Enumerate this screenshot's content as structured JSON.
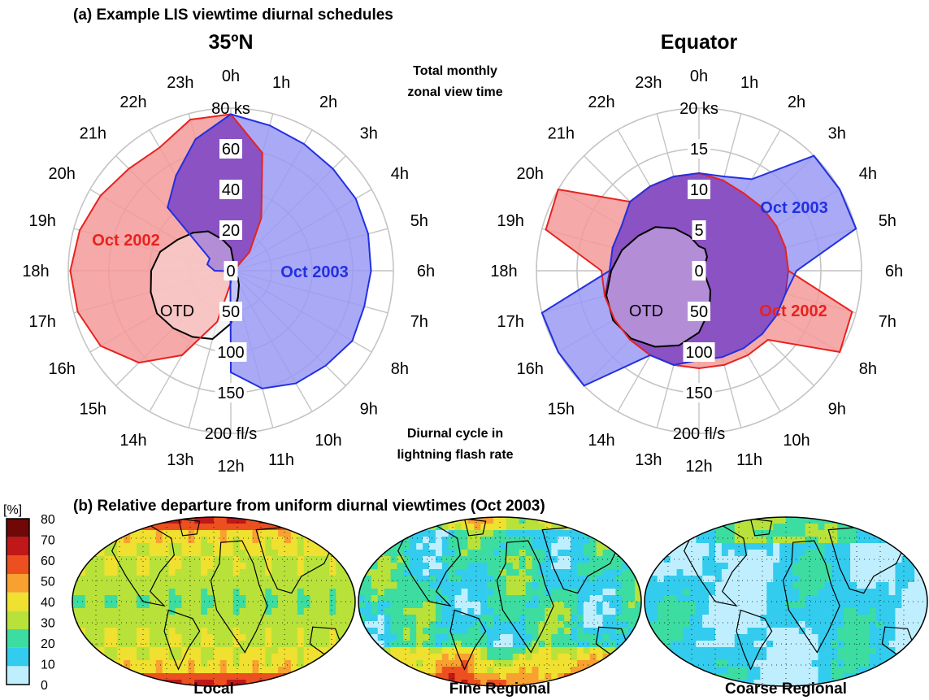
{
  "panel_a_title": "(a) Example LIS viewtime diurnal schedules",
  "panel_b_title": "(b) Relative departure from uniform diurnal viewtimes (Oct 2003)",
  "colors": {
    "oct2002_fill": "#f49a9a",
    "oct2002_line": "#e8221e",
    "oct2002_label": "#e8221e",
    "oct2003_fill": "#9a9af4",
    "oct2003_line": "#2230e0",
    "oct2003_label": "#2230e0",
    "overlap_fill": "#8a52c2",
    "overlap_line": "#8a1f7a",
    "otd_fill": "#e2e2e2",
    "grid": "#c4c4c4"
  },
  "chart_data": [
    {
      "type": "polar-area",
      "title": "35ºN",
      "note_top": [
        "Total monthly",
        "zonal view time"
      ],
      "hour_labels": [
        "0h",
        "1h",
        "2h",
        "3h",
        "4h",
        "5h",
        "6h",
        "7h",
        "8h",
        "9h",
        "10h",
        "11h",
        "12h",
        "13h",
        "14h",
        "15h",
        "16h",
        "17h",
        "18h",
        "19h",
        "20h",
        "21h",
        "22h",
        "23h"
      ],
      "rmax": 80,
      "view_ticks": [
        0,
        20,
        40,
        60
      ],
      "view_tick_labels": [
        "0",
        "20",
        "40",
        "60",
        "80 ks"
      ],
      "flash_ticks": [
        50,
        100,
        150
      ],
      "flash_tick_labels": [
        "50",
        "100",
        "150",
        "200 fl/s"
      ],
      "flash_max": 200,
      "series": [
        {
          "name": "Oct 2002",
          "values": [
            77,
            60,
            30,
            13,
            3,
            2,
            1,
            1,
            1,
            1,
            1,
            2,
            6,
            26,
            48,
            64,
            74,
            78,
            79,
            77,
            74,
            71,
            70,
            77
          ]
        },
        {
          "name": "Oct 2003",
          "values": [
            77,
            74,
            72,
            71,
            71,
            70,
            69,
            68,
            69,
            66,
            64,
            60,
            50,
            1,
            1,
            1,
            1,
            1,
            8,
            12,
            12,
            44,
            54,
            67
          ]
        },
        {
          "name": "OTD",
          "values": [
            28,
            12,
            6,
            4,
            3,
            3,
            2,
            3,
            6,
            12,
            20,
            34,
            65,
            87,
            94,
            100,
            105,
            102,
            98,
            90,
            76,
            66,
            56,
            40
          ]
        }
      ],
      "label_oct2002": "Oct 2002",
      "label_oct2003": "Oct 2003",
      "label_otd": "OTD"
    },
    {
      "type": "polar-area",
      "title": "Equator",
      "hour_labels": [
        "0h",
        "1h",
        "2h",
        "3h",
        "4h",
        "5h",
        "6h",
        "7h",
        "8h",
        "9h",
        "10h",
        "11h",
        "12h",
        "13h",
        "14h",
        "15h",
        "16h",
        "17h",
        "18h",
        "19h",
        "20h",
        "21h",
        "22h",
        "23h"
      ],
      "rmax": 20,
      "view_ticks": [
        0,
        5,
        10,
        15
      ],
      "view_tick_labels": [
        "0",
        "5",
        "10",
        "15",
        "20 ks"
      ],
      "flash_ticks": [
        50,
        100,
        150
      ],
      "flash_tick_labels": [
        "50",
        "100",
        "150",
        "200 fl/s"
      ],
      "flash_max": 200,
      "series": [
        {
          "name": "Oct 2002",
          "values": [
            12,
            11.5,
            11,
            11,
            11,
            11,
            11,
            19.5,
            20,
            12,
            12,
            12,
            12,
            12,
            12,
            12,
            12,
            12,
            12,
            19.5,
            20,
            12,
            12,
            12
          ]
        },
        {
          "name": "Oct 2003",
          "values": [
            12,
            12,
            13,
            20,
            20,
            20,
            12,
            11,
            11,
            11,
            11,
            11,
            11,
            12,
            12,
            20,
            20,
            20,
            11,
            11,
            11,
            12,
            12,
            12
          ]
        },
        {
          "name": "OTD",
          "values": [
            30,
            28,
            20,
            10,
            4,
            3,
            2,
            3,
            6,
            12,
            28,
            50,
            76,
            95,
            108,
            118,
            122,
            118,
            108,
            98,
            86,
            76,
            60,
            44
          ]
        }
      ],
      "label_oct2002": "Oct 2002",
      "label_oct2003": "Oct 2003",
      "label_otd": "OTD"
    },
    {
      "type": "heatmap",
      "colorbar_unit": "[%]",
      "colorbar_ticks": [
        0,
        10,
        20,
        30,
        40,
        50,
        60,
        70,
        80
      ],
      "colorbar_ticks_text": [
        "0",
        "10",
        "20",
        "30",
        "40",
        "50",
        "60",
        "70",
        "80"
      ],
      "colorbar_colors": [
        "#ffffff",
        "#bfefff",
        "#33ccee",
        "#3ddca0",
        "#b8e23a",
        "#f0e030",
        "#f8a030",
        "#ec5020",
        "#c01818",
        "#700808"
      ],
      "maps": [
        {
          "label": "Local",
          "pattern": "local"
        },
        {
          "label": "Fine Regional",
          "pattern": "fine"
        },
        {
          "label": "Coarse Regional",
          "pattern": "coarse"
        }
      ]
    }
  ]
}
